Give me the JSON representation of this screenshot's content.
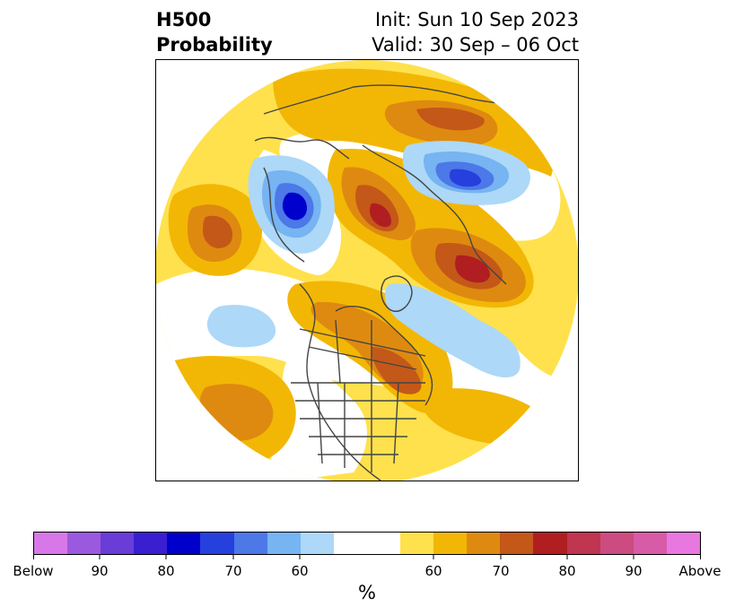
{
  "header": {
    "title_line1": "H500",
    "title_line2": "Probability",
    "init_line": "Init: Sun 10 Sep 2023",
    "valid_line": "Valid: 30 Sep – 06 Oct"
  },
  "colors": {
    "below_95": "#d878e8",
    "below_90": "#9b59e0",
    "below_85": "#6a3dd8",
    "below_80": "#3a1fd0",
    "below_75": "#0000cc",
    "below_70": "#2540dd",
    "below_65": "#4c78e8",
    "below_60": "#76b4f2",
    "below_55": "#add8f7",
    "neutral": "#ffffff",
    "above_55": "#ffe14d",
    "above_60": "#f2b705",
    "above_65": "#de8a10",
    "above_70": "#c45818",
    "above_75": "#b01e22",
    "above_80": "#c03550",
    "above_85": "#cc4b80",
    "above_90": "#d85ba8",
    "above_95": "#e878e0",
    "coastline": "#444444"
  },
  "colorbar": {
    "ticks": [
      "Below",
      "90",
      "80",
      "70",
      "60",
      "60",
      "70",
      "80",
      "90",
      "Above"
    ],
    "unit_label": "%"
  }
}
